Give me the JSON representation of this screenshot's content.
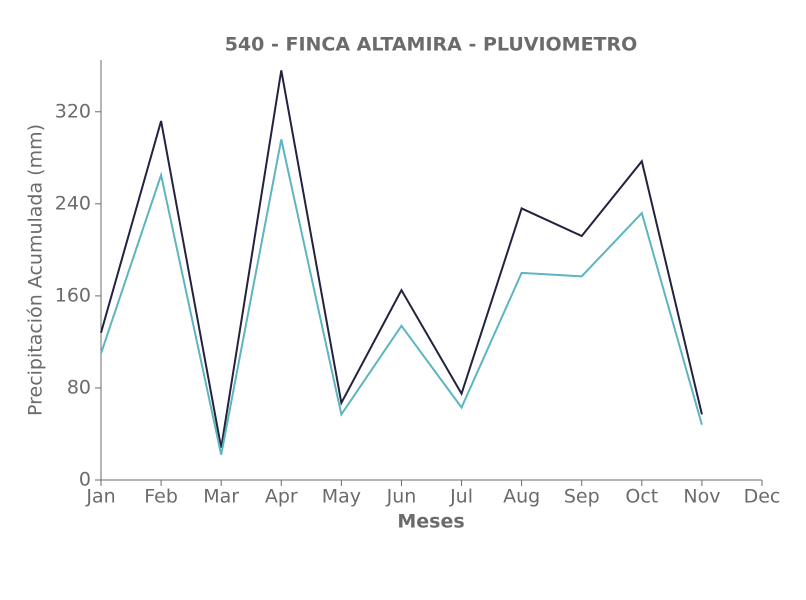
{
  "chart_data": {
    "type": "line",
    "title": "540 - FINCA ALTAMIRA - PLUVIOMETRO",
    "x_label": "Meses",
    "y_label": "Precipitación Acumulada (mm)",
    "categories": [
      "Jan",
      "Feb",
      "Mar",
      "Apr",
      "May",
      "Jun",
      "Jul",
      "Aug",
      "Sep",
      "Oct",
      "Nov",
      "Dec"
    ],
    "series": [
      {
        "color": "#23223f",
        "values": [
          128,
          312,
          28,
          356,
          67,
          165,
          75,
          236,
          212,
          277,
          57,
          null
        ]
      },
      {
        "color": "#5cb5bf",
        "values": [
          110,
          265,
          22,
          296,
          57,
          134,
          63,
          180,
          177,
          232,
          48,
          null
        ]
      }
    ],
    "ylim": [
      0,
      365
    ],
    "yticks": [
      0,
      80,
      160,
      240,
      320
    ]
  }
}
